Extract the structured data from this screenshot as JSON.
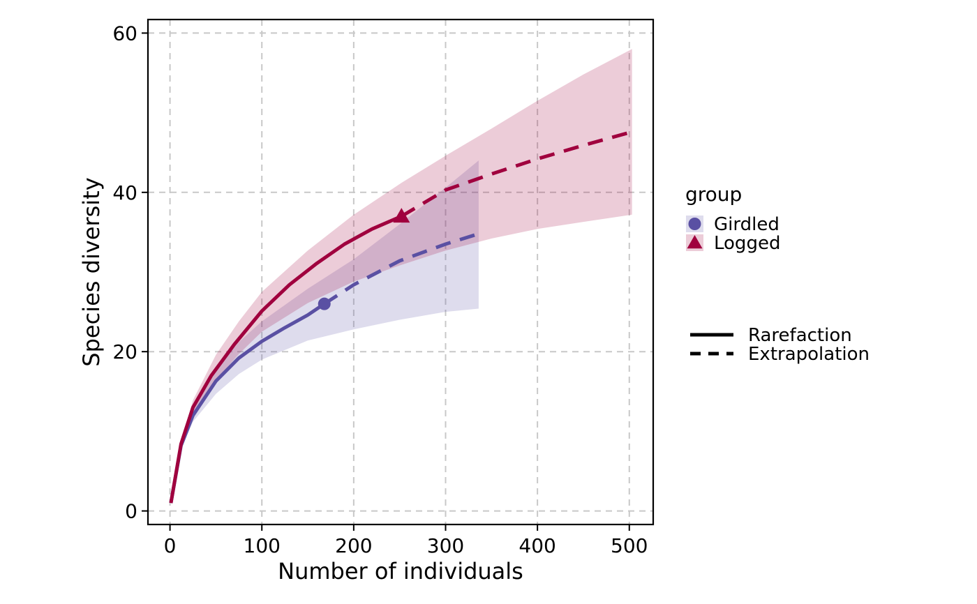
{
  "chart_data": {
    "type": "line",
    "xlabel": "Number of individuals",
    "ylabel": "Species diversity",
    "xlim": [
      -24,
      526
    ],
    "ylim": [
      -1.7,
      61.7
    ],
    "x_ticks": [
      0,
      100,
      200,
      300,
      400,
      500
    ],
    "y_ticks": [
      0,
      20,
      40,
      60
    ],
    "x_tick_labels": [
      "0",
      "100",
      "200",
      "300",
      "400",
      "500"
    ],
    "y_tick_labels": [
      "0",
      "20",
      "40",
      "60"
    ],
    "grid": true,
    "grid_style": "dashed",
    "legend_position": "right",
    "group_legend": {
      "title": "group",
      "entries": [
        "Girdled",
        "Logged"
      ]
    },
    "linetype_legend": {
      "entries": [
        "Rarefaction",
        "Extrapolation"
      ]
    },
    "series": [
      {
        "name": "Girdled",
        "color": "#5a50a3",
        "marker": "circle",
        "observed": {
          "x": 168,
          "y": 26
        },
        "rarefaction": [
          [
            1,
            1
          ],
          [
            12,
            8.2
          ],
          [
            25,
            12
          ],
          [
            50,
            16.3
          ],
          [
            75,
            19.2
          ],
          [
            100,
            21.3
          ],
          [
            125,
            23
          ],
          [
            150,
            24.6
          ],
          [
            168,
            26
          ]
        ],
        "extrapolation": [
          [
            168,
            26
          ],
          [
            200,
            28.4
          ],
          [
            250,
            31.4
          ],
          [
            300,
            33.5
          ],
          [
            336,
            34.8
          ]
        ],
        "ci_upper": [
          [
            1,
            1
          ],
          [
            12,
            8.5
          ],
          [
            25,
            12.7
          ],
          [
            50,
            17.8
          ],
          [
            75,
            21.2
          ],
          [
            100,
            23.8
          ],
          [
            150,
            27.9
          ],
          [
            200,
            31.6
          ],
          [
            250,
            36
          ],
          [
            300,
            40.6
          ],
          [
            336,
            44
          ]
        ],
        "ci_lower": [
          [
            1,
            1
          ],
          [
            12,
            7.9
          ],
          [
            25,
            11.2
          ],
          [
            50,
            14.7
          ],
          [
            75,
            17.2
          ],
          [
            100,
            19
          ],
          [
            150,
            21.4
          ],
          [
            200,
            22.8
          ],
          [
            250,
            24
          ],
          [
            300,
            25
          ],
          [
            336,
            25.4
          ]
        ]
      },
      {
        "name": "Logged",
        "color": "#a0003e",
        "marker": "triangle",
        "observed": {
          "x": 252,
          "y": 37
        },
        "rarefaction": [
          [
            1,
            1
          ],
          [
            12,
            8.4
          ],
          [
            25,
            13
          ],
          [
            45,
            17
          ],
          [
            70,
            20.9
          ],
          [
            100,
            25.1
          ],
          [
            130,
            28.4
          ],
          [
            160,
            31.1
          ],
          [
            190,
            33.5
          ],
          [
            220,
            35.4
          ],
          [
            252,
            37
          ]
        ],
        "extrapolation": [
          [
            252,
            37
          ],
          [
            300,
            40.3
          ],
          [
            350,
            42.3
          ],
          [
            400,
            44.2
          ],
          [
            450,
            45.9
          ],
          [
            503,
            47.6
          ]
        ],
        "ci_upper": [
          [
            1,
            1
          ],
          [
            12,
            8.7
          ],
          [
            25,
            13.9
          ],
          [
            50,
            19.6
          ],
          [
            75,
            23.8
          ],
          [
            100,
            27.5
          ],
          [
            150,
            32.7
          ],
          [
            200,
            37.2
          ],
          [
            252,
            41.2
          ],
          [
            300,
            44.6
          ],
          [
            350,
            48
          ],
          [
            400,
            51.5
          ],
          [
            450,
            54.8
          ],
          [
            503,
            58
          ]
        ],
        "ci_lower": [
          [
            1,
            1
          ],
          [
            12,
            8.1
          ],
          [
            25,
            12.1
          ],
          [
            50,
            16.4
          ],
          [
            75,
            19.7
          ],
          [
            100,
            22.5
          ],
          [
            150,
            26.1
          ],
          [
            200,
            28.8
          ],
          [
            252,
            30.9
          ],
          [
            300,
            32.7
          ],
          [
            350,
            34.2
          ],
          [
            400,
            35.4
          ],
          [
            450,
            36.3
          ],
          [
            503,
            37.2
          ]
        ]
      }
    ]
  }
}
